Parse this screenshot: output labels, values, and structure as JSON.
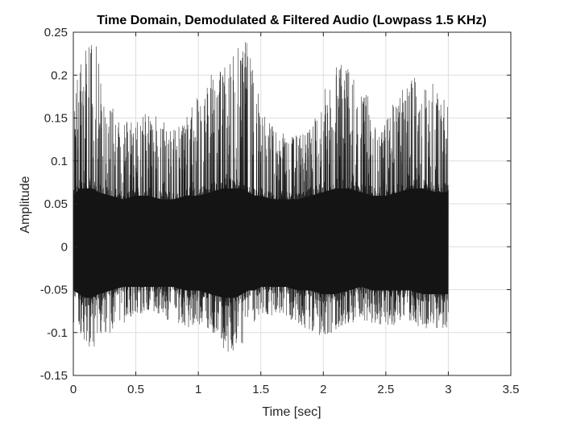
{
  "chart_data": {
    "type": "line",
    "title": "Time Domain, Demodulated & Filtered Audio (Lowpass 1.5 KHz)",
    "xlabel": "Time [sec]",
    "ylabel": "Amplitude",
    "xlim": [
      0,
      3.5
    ],
    "ylim": [
      -0.15,
      0.25
    ],
    "xticks": [
      0,
      0.5,
      1,
      1.5,
      2,
      2.5,
      3,
      3.5
    ],
    "xtick_labels": [
      "0",
      "0.5",
      "1",
      "1.5",
      "2",
      "2.5",
      "3",
      "3.5"
    ],
    "yticks": [
      -0.15,
      -0.1,
      -0.05,
      0,
      0.05,
      0.1,
      0.15,
      0.2,
      0.25
    ],
    "ytick_labels": [
      "-0.15",
      "-0.1",
      "-0.05",
      "0",
      "0.05",
      "0.1",
      "0.15",
      "0.2",
      "0.25"
    ],
    "grid": true,
    "line_color": "#1a1a1a",
    "signal_duration": 3.0,
    "envelope": {
      "t": [
        0,
        0.05,
        0.1,
        0.15,
        0.2,
        0.3,
        0.4,
        0.5,
        0.6,
        0.7,
        0.8,
        0.9,
        1.0,
        1.1,
        1.2,
        1.25,
        1.3,
        1.35,
        1.4,
        1.45,
        1.5,
        1.6,
        1.7,
        1.8,
        1.9,
        2.0,
        2.1,
        2.2,
        2.3,
        2.4,
        2.5,
        2.6,
        2.7,
        2.8,
        2.9,
        3.0
      ],
      "upper": [
        0.16,
        0.22,
        0.24,
        0.245,
        0.23,
        0.17,
        0.15,
        0.15,
        0.16,
        0.15,
        0.14,
        0.15,
        0.18,
        0.2,
        0.22,
        0.225,
        0.23,
        0.24,
        0.24,
        0.22,
        0.16,
        0.14,
        0.13,
        0.13,
        0.14,
        0.18,
        0.21,
        0.22,
        0.2,
        0.16,
        0.15,
        0.18,
        0.2,
        0.19,
        0.19,
        0.19
      ],
      "lower": [
        -0.09,
        -0.1,
        -0.115,
        -0.12,
        -0.11,
        -0.1,
        -0.095,
        -0.08,
        -0.075,
        -0.08,
        -0.09,
        -0.095,
        -0.09,
        -0.1,
        -0.12,
        -0.125,
        -0.12,
        -0.115,
        -0.1,
        -0.09,
        -0.08,
        -0.08,
        -0.085,
        -0.09,
        -0.1,
        -0.105,
        -0.1,
        -0.09,
        -0.085,
        -0.09,
        -0.095,
        -0.09,
        -0.09,
        -0.095,
        -0.095,
        -0.095
      ],
      "core_upper": [
        0.07,
        0.08,
        0.08,
        0.08,
        0.075,
        0.07,
        0.065,
        0.07,
        0.07,
        0.065,
        0.065,
        0.07,
        0.07,
        0.075,
        0.08,
        0.08,
        0.08,
        0.08,
        0.075,
        0.07,
        0.07,
        0.065,
        0.065,
        0.065,
        0.07,
        0.075,
        0.08,
        0.08,
        0.075,
        0.07,
        0.07,
        0.075,
        0.08,
        0.08,
        0.075,
        0.075
      ],
      "core_lower": [
        -0.06,
        -0.065,
        -0.07,
        -0.07,
        -0.065,
        -0.06,
        -0.055,
        -0.055,
        -0.055,
        -0.055,
        -0.055,
        -0.06,
        -0.06,
        -0.065,
        -0.07,
        -0.07,
        -0.07,
        -0.065,
        -0.06,
        -0.06,
        -0.055,
        -0.055,
        -0.055,
        -0.06,
        -0.06,
        -0.065,
        -0.065,
        -0.06,
        -0.055,
        -0.06,
        -0.06,
        -0.06,
        -0.06,
        -0.065,
        -0.065,
        -0.065
      ]
    }
  }
}
